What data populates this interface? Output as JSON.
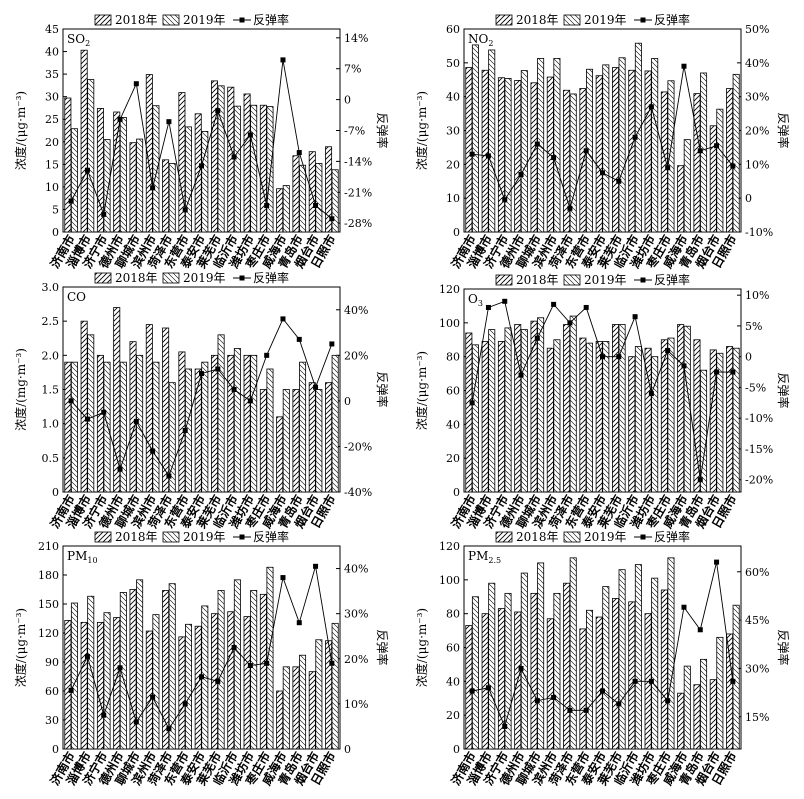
{
  "hatch_pattern_2018": "diagonal-forward",
  "hatch_pattern_2019": "diagonal-backward",
  "colors": {
    "bar_stroke": "#000000",
    "line": "#000000",
    "background": "#ffffff"
  },
  "chart_data": [
    {
      "type": "bar",
      "pollutant": "SO2",
      "ylabel": "浓度/(μg·m⁻³)",
      "y2label": "反弹率",
      "ylim": [
        0,
        45
      ],
      "yticks": [
        0,
        5,
        10,
        15,
        20,
        25,
        30,
        35,
        40,
        45
      ],
      "y2lim": [
        -0.3,
        0.16
      ],
      "y2ticks": [
        -0.28,
        -0.21,
        -0.14,
        -0.07,
        0,
        0.07,
        0.14
      ],
      "y2tick_labels": [
        "-28%",
        "-21%",
        "-14%",
        "-7%",
        "0",
        "7%",
        "14%"
      ],
      "categories": [
        "济南市",
        "淄博市",
        "济宁市",
        "德州市",
        "聊城市",
        "滨州市",
        "菏泽市",
        "东营市",
        "泰安市",
        "莱芜市",
        "临沂市",
        "潍坊市",
        "枣庄市",
        "威海市",
        "青岛市",
        "烟台市",
        "日照市"
      ],
      "legend": [
        "2018年",
        "2019年",
        "反弹率"
      ],
      "series": [
        {
          "name": "2018年",
          "values": [
            29.7,
            40.3,
            27.4,
            26.6,
            19.8,
            34.9,
            16.0,
            30.9,
            26.2,
            33.5,
            32.1,
            30.6,
            28.1,
            9.6,
            16.9,
            17.8,
            18.9
          ]
        },
        {
          "name": "2019年",
          "values": [
            22.9,
            33.8,
            20.5,
            25.4,
            20.6,
            28.0,
            15.2,
            23.3,
            22.3,
            32.4,
            27.9,
            28.1,
            27.8,
            10.3,
            14.8,
            15.2,
            13.8
          ]
        },
        {
          "name": "反弹率",
          "values": [
            -0.23,
            -0.16,
            -0.26,
            -0.045,
            0.036,
            -0.2,
            -0.05,
            -0.25,
            -0.15,
            -0.025,
            -0.13,
            -0.08,
            -0.24,
            0.09,
            -0.12,
            -0.24,
            -0.27
          ]
        }
      ]
    },
    {
      "type": "bar",
      "pollutant": "NO2",
      "ylabel": "浓度/(μg·m⁻³)",
      "y2label": "反弹率",
      "ylim": [
        0,
        60
      ],
      "yticks": [
        0,
        10,
        20,
        30,
        40,
        50,
        60
      ],
      "y2lim": [
        -0.1,
        0.5
      ],
      "y2ticks": [
        -0.1,
        0,
        0.1,
        0.2,
        0.3,
        0.4,
        0.5
      ],
      "y2tick_labels": [
        "-10%",
        "0",
        "10%",
        "20%",
        "30%",
        "40%",
        "50%"
      ],
      "categories": [
        "济南市",
        "淄博市",
        "济宁市",
        "德州市",
        "聊城市",
        "滨州市",
        "菏泽市",
        "东营市",
        "泰安市",
        "莱芜市",
        "临沂市",
        "潍坊市",
        "枣庄市",
        "威海市",
        "青岛市",
        "烟台市",
        "日照市"
      ],
      "legend": [
        "2018年",
        "2019年",
        "反弹率"
      ],
      "series": [
        {
          "name": "2018年",
          "values": [
            48.6,
            47.8,
            45.6,
            44.8,
            44.1,
            45.8,
            41.9,
            42.4,
            46.2,
            48.6,
            47.8,
            47.6,
            41.4,
            19.6,
            40.9,
            31.4,
            42.4
          ]
        },
        {
          "name": "2019年",
          "values": [
            55.3,
            53.8,
            45.4,
            47.7,
            51.3,
            51.3,
            40.8,
            48.1,
            49.4,
            51.5,
            55.8,
            51.3,
            44.7,
            27.3,
            47.0,
            36.3,
            46.6
          ]
        },
        {
          "name": "反弹率",
          "values": [
            0.13,
            0.125,
            -0.005,
            0.07,
            0.16,
            0.12,
            -0.03,
            0.14,
            0.075,
            0.05,
            0.18,
            0.27,
            0.09,
            0.39,
            0.14,
            0.155,
            0.095
          ]
        }
      ]
    },
    {
      "type": "bar",
      "pollutant": "CO",
      "ylabel": "浓度/(mg·m⁻³)",
      "y2label": "反弹率",
      "ylim": [
        0,
        3.0
      ],
      "yticks": [
        0,
        0.5,
        1.0,
        1.5,
        2.0,
        2.5,
        3.0
      ],
      "ytick_labels": [
        "0",
        "0.5",
        "1.0",
        "1.5",
        "2.0",
        "2.5",
        "3.0"
      ],
      "y2lim": [
        -0.4,
        0.5
      ],
      "y2ticks": [
        -0.4,
        -0.2,
        0,
        0.2,
        0.4
      ],
      "y2tick_labels": [
        "-40%",
        "-20%",
        "0",
        "20%",
        "40%"
      ],
      "categories": [
        "济南市",
        "淄博市",
        "济宁市",
        "德州市",
        "聊城市",
        "滨州市",
        "菏泽市",
        "东营市",
        "泰安市",
        "莱芜市",
        "临沂市",
        "潍坊市",
        "枣庄市",
        "威海市",
        "青岛市",
        "烟台市",
        "日照市"
      ],
      "legend": [
        "2018年",
        "2019年",
        "反弹率"
      ],
      "series": [
        {
          "name": "2018年",
          "values": [
            1.9,
            2.5,
            2.0,
            2.7,
            2.2,
            2.45,
            2.4,
            2.05,
            1.8,
            2.0,
            2.0,
            2.0,
            1.5,
            1.1,
            1.5,
            1.6,
            1.6
          ]
        },
        {
          "name": "2019年",
          "values": [
            1.9,
            2.3,
            1.9,
            1.9,
            2.0,
            1.9,
            1.6,
            1.8,
            1.9,
            2.3,
            2.1,
            2.0,
            1.8,
            1.5,
            1.9,
            1.5,
            2.0
          ]
        },
        {
          "name": "反弹率",
          "values": [
            0.0,
            -0.08,
            -0.05,
            -0.3,
            -0.09,
            -0.22,
            -0.33,
            -0.13,
            0.12,
            0.14,
            0.05,
            0.0,
            0.2,
            0.36,
            0.27,
            0.06,
            0.25
          ]
        }
      ]
    },
    {
      "type": "bar",
      "pollutant": "O3",
      "ylabel": "浓度/(μg·m⁻³)",
      "y2label": "反弹率",
      "ylim": [
        0,
        120
      ],
      "yticks": [
        0,
        20,
        40,
        60,
        80,
        100,
        120
      ],
      "y2lim": [
        -0.22,
        0.11
      ],
      "y2ticks": [
        -0.2,
        -0.15,
        -0.1,
        -0.05,
        0,
        0.05,
        0.1
      ],
      "y2tick_labels": [
        "-20%",
        "-15%",
        "-10%",
        "-5%",
        "0",
        "5%",
        "10%"
      ],
      "categories": [
        "济南市",
        "淄博市",
        "济宁市",
        "德州市",
        "聊城市",
        "滨州市",
        "菏泽市",
        "东营市",
        "泰安市",
        "莱芜市",
        "临沂市",
        "潍坊市",
        "枣庄市",
        "威海市",
        "青岛市",
        "烟台市",
        "日照市"
      ],
      "legend": [
        "2018年",
        "2019年",
        "反弹率"
      ],
      "series": [
        {
          "name": "2018年",
          "values": [
            94,
            89,
            89,
            99,
            101,
            85,
            99,
            91,
            89,
            99,
            80,
            85,
            90,
            99,
            90,
            84,
            86
          ]
        },
        {
          "name": "2019年",
          "values": [
            87,
            96,
            97,
            96,
            103,
            90,
            104,
            88,
            89,
            99,
            86,
            80,
            91,
            98,
            72,
            82,
            85
          ]
        },
        {
          "name": "反弹率",
          "values": [
            -0.075,
            0.08,
            0.09,
            -0.03,
            0.03,
            0.085,
            0.055,
            0.08,
            0.0,
            0.0,
            0.065,
            -0.06,
            0.01,
            -0.015,
            -0.2,
            -0.025,
            -0.025
          ]
        }
      ]
    },
    {
      "type": "bar",
      "pollutant": "PM10",
      "ylabel": "浓度/(μg·m⁻³)",
      "y2label": "反弹率",
      "ylim": [
        0,
        210
      ],
      "yticks": [
        0,
        30,
        60,
        90,
        120,
        150,
        180,
        210
      ],
      "y2lim": [
        0,
        0.45
      ],
      "y2ticks": [
        0,
        0.1,
        0.2,
        0.3,
        0.4
      ],
      "y2tick_labels": [
        "0",
        "10%",
        "20%",
        "30%",
        "40%"
      ],
      "categories": [
        "济南市",
        "淄博市",
        "济宁市",
        "德州市",
        "聊城市",
        "滨州市",
        "菏泽市",
        "东营市",
        "泰安市",
        "莱芜市",
        "临沂市",
        "潍坊市",
        "枣庄市",
        "威海市",
        "青岛市",
        "烟台市",
        "日照市"
      ],
      "legend": [
        "2018年",
        "2019年",
        "反弹率"
      ],
      "series": [
        {
          "name": "2018年",
          "values": [
            133,
            131,
            131,
            136,
            165,
            122,
            164,
            116,
            127,
            140,
            142,
            137,
            160,
            60,
            85,
            80,
            112
          ]
        },
        {
          "name": "2019年",
          "values": [
            151,
            158,
            141,
            162,
            175,
            139,
            171,
            129,
            148,
            164,
            175,
            164,
            188,
            85,
            97,
            113,
            130
          ]
        },
        {
          "name": "反弹率",
          "values": [
            0.13,
            0.205,
            0.075,
            0.18,
            0.06,
            0.115,
            0.045,
            0.1,
            0.16,
            0.15,
            0.225,
            0.185,
            0.19,
            0.38,
            0.28,
            0.405,
            0.19
          ]
        }
      ]
    },
    {
      "type": "bar",
      "pollutant": "PM2.5",
      "ylabel": "浓度/(μg·m⁻³)",
      "y2label": "反弹率",
      "ylim": [
        0,
        120
      ],
      "yticks": [
        0,
        20,
        40,
        60,
        80,
        100,
        120
      ],
      "y2lim": [
        0.05,
        0.68
      ],
      "y2ticks": [
        0.15,
        0.3,
        0.45,
        0.6
      ],
      "y2tick_labels": [
        "15%",
        "30%",
        "45%",
        "60%"
      ],
      "categories": [
        "济南市",
        "淄博市",
        "济宁市",
        "德州市",
        "聊城市",
        "滨州市",
        "菏泽市",
        "东营市",
        "泰安市",
        "莱芜市",
        "临沂市",
        "潍坊市",
        "枣庄市",
        "威海市",
        "青岛市",
        "烟台市",
        "日照市"
      ],
      "legend": [
        "2018年",
        "2019年",
        "反弹率"
      ],
      "series": [
        {
          "name": "2018年",
          "values": [
            73,
            80,
            83,
            81,
            92,
            77,
            98,
            71,
            78,
            89,
            87,
            80,
            94,
            33,
            38,
            41,
            68
          ]
        },
        {
          "name": "2019年",
          "values": [
            90,
            98,
            92,
            104,
            110,
            92,
            113,
            82,
            96,
            106,
            109,
            101,
            113,
            49,
            53,
            66,
            85
          ]
        },
        {
          "name": "反弹率",
          "values": [
            0.23,
            0.24,
            0.12,
            0.3,
            0.2,
            0.21,
            0.17,
            0.17,
            0.23,
            0.19,
            0.26,
            0.26,
            0.2,
            0.49,
            0.42,
            0.63,
            0.26
          ]
        }
      ]
    }
  ]
}
